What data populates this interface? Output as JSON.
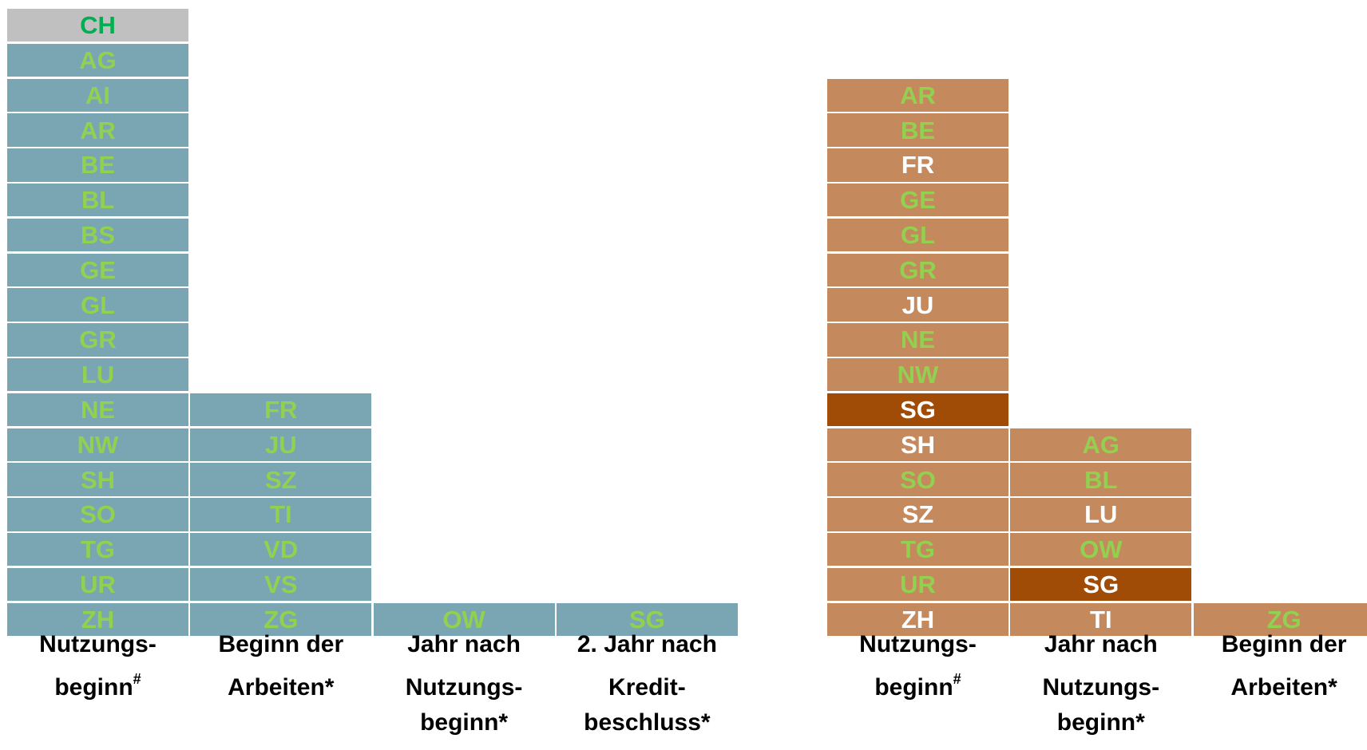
{
  "groups": [
    {
      "fill": "#7aa6b4",
      "columns": [
        {
          "label_lines": [
            "Nutzungs-",
            "beginn"
          ],
          "superscript": "#",
          "cells": [
            {
              "text": "CH",
              "color": "#00b050",
              "fill": "#c0c0c0"
            },
            {
              "text": "AG",
              "color": "#92d050"
            },
            {
              "text": "AI",
              "color": "#92d050"
            },
            {
              "text": "AR",
              "color": "#92d050"
            },
            {
              "text": "BE",
              "color": "#92d050"
            },
            {
              "text": "BL",
              "color": "#92d050"
            },
            {
              "text": "BS",
              "color": "#92d050"
            },
            {
              "text": "GE",
              "color": "#92d050"
            },
            {
              "text": "GL",
              "color": "#92d050"
            },
            {
              "text": "GR",
              "color": "#92d050"
            },
            {
              "text": "LU",
              "color": "#92d050"
            },
            {
              "text": "NE",
              "color": "#92d050"
            },
            {
              "text": "NW",
              "color": "#92d050"
            },
            {
              "text": "SH",
              "color": "#92d050"
            },
            {
              "text": "SO",
              "color": "#92d050"
            },
            {
              "text": "TG",
              "color": "#92d050"
            },
            {
              "text": "UR",
              "color": "#92d050"
            },
            {
              "text": "ZH",
              "color": "#92d050"
            }
          ]
        },
        {
          "label_lines": [
            "Beginn der",
            "Arbeiten*"
          ],
          "cells": [
            {
              "text": "FR",
              "color": "#92d050"
            },
            {
              "text": "JU",
              "color": "#92d050"
            },
            {
              "text": "SZ",
              "color": "#92d050"
            },
            {
              "text": "TI",
              "color": "#92d050"
            },
            {
              "text": "VD",
              "color": "#92d050"
            },
            {
              "text": "VS",
              "color": "#92d050"
            },
            {
              "text": "ZG",
              "color": "#92d050"
            }
          ]
        },
        {
          "label_lines": [
            "Jahr nach",
            "Nutzungs-",
            "beginn*"
          ],
          "cells": [
            {
              "text": "OW",
              "color": "#92d050"
            }
          ]
        },
        {
          "label_lines": [
            "2. Jahr nach",
            "Kredit-",
            "beschluss*"
          ],
          "cells": [
            {
              "text": "SG",
              "color": "#92d050"
            }
          ]
        }
      ]
    },
    {
      "fill": "#c48a5e",
      "columns": [
        {
          "label_lines": [
            "Nutzungs-",
            "beginn"
          ],
          "superscript": "#",
          "cells": [
            {
              "text": "AR",
              "color": "#92d050"
            },
            {
              "text": "BE",
              "color": "#92d050"
            },
            {
              "text": "FR",
              "color": "#ffffff"
            },
            {
              "text": "GE",
              "color": "#92d050"
            },
            {
              "text": "GL",
              "color": "#92d050"
            },
            {
              "text": "GR",
              "color": "#92d050"
            },
            {
              "text": "JU",
              "color": "#ffffff"
            },
            {
              "text": "NE",
              "color": "#92d050"
            },
            {
              "text": "NW",
              "color": "#92d050"
            },
            {
              "text": "SG",
              "color": "#ffffff",
              "fill": "#a04c06"
            },
            {
              "text": "SH",
              "color": "#ffffff"
            },
            {
              "text": "SO",
              "color": "#92d050"
            },
            {
              "text": "SZ",
              "color": "#ffffff"
            },
            {
              "text": "TG",
              "color": "#92d050"
            },
            {
              "text": "UR",
              "color": "#92d050"
            },
            {
              "text": "ZH",
              "color": "#ffffff"
            }
          ]
        },
        {
          "label_lines": [
            "Jahr nach",
            "Nutzungs-",
            "beginn*"
          ],
          "cells": [
            {
              "text": "AG",
              "color": "#92d050"
            },
            {
              "text": "BL",
              "color": "#92d050"
            },
            {
              "text": "LU",
              "color": "#ffffff"
            },
            {
              "text": "OW",
              "color": "#92d050"
            },
            {
              "text": "SG",
              "color": "#ffffff",
              "fill": "#a04c06"
            },
            {
              "text": "TI",
              "color": "#ffffff"
            }
          ]
        },
        {
          "label_lines": [
            "Beginn der",
            "Arbeiten*"
          ],
          "cells": [
            {
              "text": "ZG",
              "color": "#92d050"
            }
          ]
        }
      ]
    }
  ]
}
